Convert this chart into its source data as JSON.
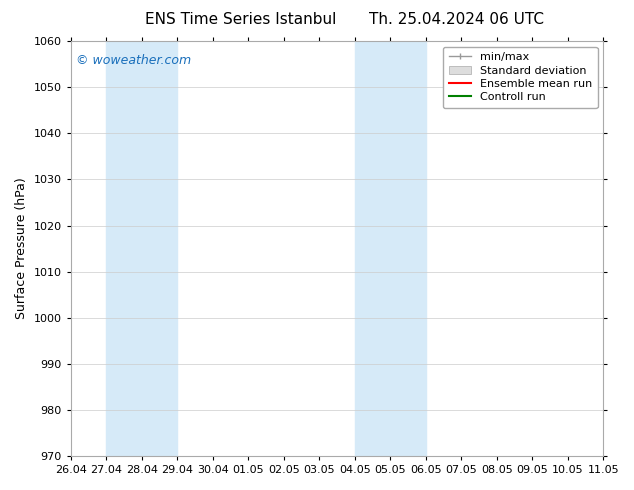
{
  "title_left": "ENS Time Series Istanbul",
  "title_right": "Th. 25.04.2024 06 UTC",
  "ylabel": "Surface Pressure (hPa)",
  "ylim": [
    970,
    1060
  ],
  "yticks": [
    970,
    980,
    990,
    1000,
    1010,
    1020,
    1030,
    1040,
    1050,
    1060
  ],
  "x_tick_labels": [
    "26.04",
    "27.04",
    "28.04",
    "29.04",
    "30.04",
    "01.05",
    "02.05",
    "03.05",
    "04.05",
    "05.05",
    "06.05",
    "07.05",
    "08.05",
    "09.05",
    "10.05",
    "11.05"
  ],
  "n_ticks": 16,
  "xlim": [
    0,
    15
  ],
  "shaded_regions": [
    {
      "x_start": 1.0,
      "x_end": 2.0,
      "color": "#d6eaf8"
    },
    {
      "x_start": 2.0,
      "x_end": 3.0,
      "color": "#d6eaf8"
    },
    {
      "x_start": 8.0,
      "x_end": 9.0,
      "color": "#d6eaf8"
    },
    {
      "x_start": 9.0,
      "x_end": 10.0,
      "color": "#d6eaf8"
    }
  ],
  "watermark": "© woweather.com",
  "watermark_color": "#1a6fbb",
  "legend_labels": [
    "min/max",
    "Standard deviation",
    "Ensemble mean run",
    "Controll run"
  ],
  "legend_line_colors": [
    "#999999",
    "#cccccc",
    "#ff0000",
    "#008000"
  ],
  "background_color": "#ffffff",
  "plot_background": "#ffffff",
  "grid_color": "#cccccc",
  "title_fontsize": 11,
  "tick_fontsize": 8,
  "ylabel_fontsize": 9,
  "legend_fontsize": 8
}
